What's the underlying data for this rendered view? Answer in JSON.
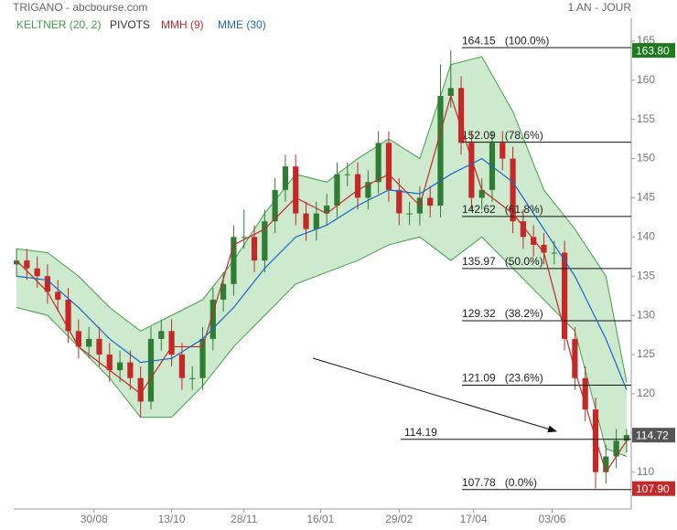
{
  "chart_data": {
    "type": "candlestick",
    "title": "TRIGANO - abcbourse.com",
    "period": "1 AN - JOUR",
    "candles": {
      "color_up": "#2e7d32",
      "color_down": "#c62828",
      "open": [
        136.5,
        137,
        136,
        135,
        133,
        132,
        128,
        126,
        127,
        125,
        123,
        124,
        122,
        119,
        127,
        128,
        125,
        122,
        122,
        127,
        132,
        134,
        140,
        140,
        137,
        142,
        146,
        149,
        143,
        141,
        143,
        144,
        148,
        148,
        145,
        147,
        152,
        146,
        143,
        143,
        145,
        144,
        158,
        159,
        152,
        145,
        146,
        152,
        150,
        142,
        140,
        139,
        138,
        138,
        127,
        122,
        118,
        110,
        112,
        114
      ],
      "high": [
        138.5,
        138.5,
        137.5,
        136.5,
        134.5,
        133.5,
        129.5,
        128.5,
        128.5,
        126.5,
        125.5,
        125.5,
        123.5,
        128.5,
        129.5,
        129.5,
        126.5,
        123.5,
        128.5,
        133.5,
        135.5,
        141.5,
        143.5,
        141.5,
        143.5,
        147.5,
        150.5,
        150.5,
        144.5,
        144.5,
        145.5,
        149.5,
        149.5,
        149.5,
        148.5,
        153.5,
        153.5,
        147.5,
        144.5,
        146.5,
        146.5,
        162,
        163.8,
        160.5,
        153.5,
        147.5,
        153.5,
        153.5,
        151.5,
        143.5,
        141.5,
        140.5,
        139.5,
        139.5,
        128.5,
        123.5,
        119.5,
        113.5,
        115.5,
        115.5
      ],
      "low": [
        135,
        134.5,
        133.5,
        131.5,
        130.5,
        126.5,
        124.5,
        124.5,
        123.5,
        121.5,
        121.5,
        120.5,
        117,
        118,
        125.5,
        123.5,
        120.5,
        120.5,
        120.5,
        125.5,
        130.5,
        132.5,
        138.5,
        135.5,
        135.5,
        140.5,
        144.5,
        141.5,
        139.5,
        139.5,
        141.5,
        142.5,
        146.5,
        143.5,
        143.5,
        145.5,
        144.5,
        141.5,
        141.5,
        141.5,
        142.5,
        142.5,
        156.5,
        150.5,
        143.5,
        143.5,
        144.5,
        148.5,
        140.5,
        138.5,
        137.5,
        136.5,
        136.5,
        125.5,
        120.5,
        116.5,
        107.9,
        108.5,
        110.5,
        112.5
      ],
      "close": [
        137,
        136,
        135,
        133,
        132,
        128,
        126,
        127,
        125,
        123,
        124,
        122,
        119,
        127,
        128,
        125,
        122,
        122,
        127,
        132,
        134,
        140,
        140,
        137,
        142,
        146,
        149,
        143,
        141,
        143,
        144,
        148,
        148,
        145,
        147,
        152,
        146,
        143,
        143,
        145,
        144,
        158,
        159,
        152,
        145,
        146,
        152,
        150,
        142,
        140,
        139,
        138,
        138,
        127,
        122,
        118,
        110,
        112,
        114,
        114.72
      ]
    },
    "series": [
      {
        "name": "KELTNER (20, 2)",
        "color": "#43a047",
        "fill": "rgba(76,175,80,0.28)",
        "x": [
          0,
          3,
          6,
          9,
          12,
          15,
          18,
          21,
          24,
          27,
          30,
          33,
          36,
          39,
          42,
          45,
          48,
          51,
          54,
          57,
          59
        ],
        "upper": [
          138.5,
          138,
          135,
          131,
          128,
          130,
          132,
          137,
          143,
          148,
          147,
          150,
          152.5,
          150,
          162,
          163,
          156,
          146,
          141,
          135,
          121.5
        ],
        "lower": [
          131,
          130,
          126,
          122,
          117,
          117,
          121,
          126,
          130,
          134,
          135.5,
          137,
          139,
          140,
          137,
          140,
          136,
          132,
          128,
          113,
          112
        ]
      },
      {
        "name": "PIVOTS",
        "color": "#333333",
        "levels": [
          {
            "value": 164.15,
            "label": "164.15   (100.0%)"
          },
          {
            "value": 152.09,
            "label": "152.09   (78.6%)"
          },
          {
            "value": 142.62,
            "label": "142.62   (61.8%)"
          },
          {
            "value": 135.97,
            "label": "135.97   (50.0%)"
          },
          {
            "value": 129.32,
            "label": "129.32   (38.2%)"
          },
          {
            "value": 121.09,
            "label": "121.09   (23.6%)"
          },
          {
            "value": 107.78,
            "label": "107.78   (0.0%)"
          }
        ],
        "pivot": {
          "value": 114.19,
          "label": "114.19"
        }
      },
      {
        "name": "MMH (9)",
        "color": "#c62828",
        "x": [
          0,
          3,
          6,
          9,
          12,
          15,
          18,
          21,
          24,
          27,
          30,
          33,
          36,
          39,
          42,
          45,
          48,
          51,
          54,
          57,
          59
        ],
        "values": [
          137,
          133,
          126,
          123,
          120,
          126,
          126,
          139,
          141,
          145,
          143,
          146,
          148,
          144,
          158,
          146,
          143,
          138,
          123,
          110,
          114
        ]
      },
      {
        "name": "MME (30)",
        "color": "#1e66c8",
        "x": [
          0,
          3,
          6,
          9,
          12,
          15,
          18,
          21,
          24,
          27,
          30,
          33,
          36,
          39,
          42,
          45,
          48,
          51,
          54,
          57,
          59
        ],
        "values": [
          135,
          134.5,
          131,
          127,
          124,
          124.5,
          127,
          131,
          136,
          140,
          141.5,
          144,
          146,
          145.5,
          148,
          150,
          147,
          141,
          135,
          127,
          120.5
        ]
      }
    ],
    "markers": [
      {
        "value": 163.8,
        "label": "163.80",
        "color": "#1b7a1b"
      },
      {
        "value": 114.72,
        "label": "114.72",
        "color": "#555555"
      },
      {
        "value": 107.9,
        "label": "107.90",
        "color": "#c62828"
      }
    ],
    "xlim": [
      -0.27,
      59.45
    ],
    "xticks": [
      {
        "value": 7.5,
        "label": "30/08"
      },
      {
        "value": 15,
        "label": "13/10"
      },
      {
        "value": 22,
        "label": "28/11"
      },
      {
        "value": 29.4,
        "label": "16/01"
      },
      {
        "value": 37,
        "label": "29/02"
      },
      {
        "value": 44.2,
        "label": "17/04"
      },
      {
        "value": 51.8,
        "label": "03/06"
      }
    ],
    "ylim": [
      105.3,
      167.9
    ],
    "yticks": [
      110,
      115,
      120,
      125,
      130,
      135,
      140,
      145,
      150,
      155,
      160,
      165
    ]
  }
}
